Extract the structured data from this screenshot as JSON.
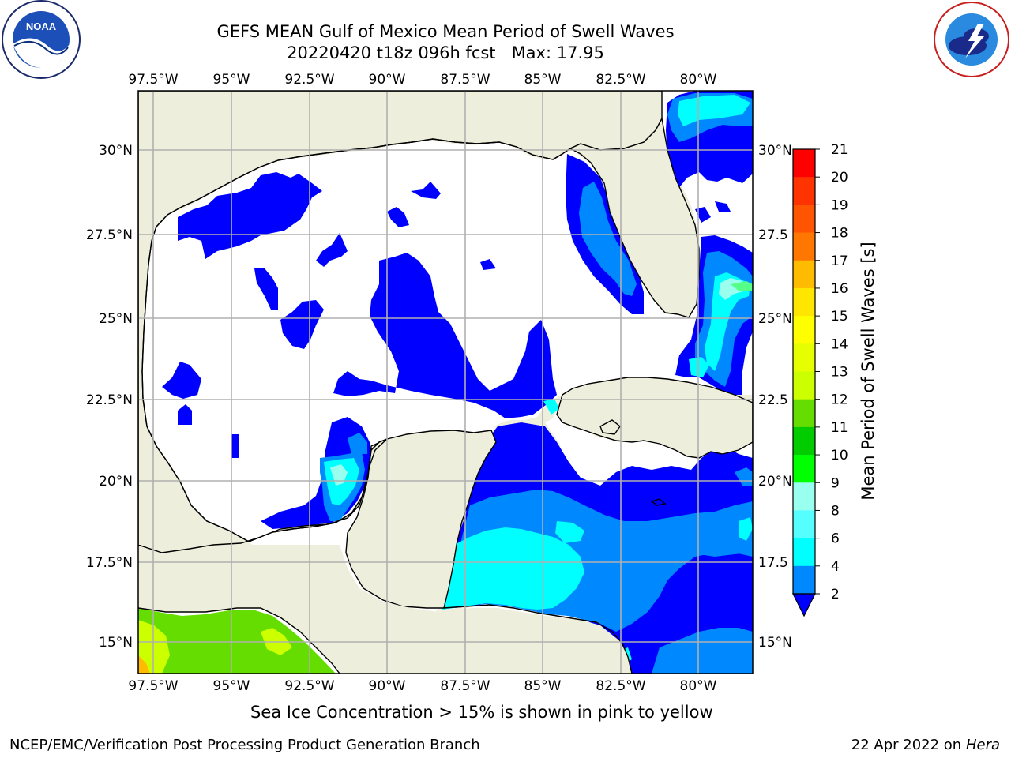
{
  "title": {
    "line1": "GEFS MEAN Gulf of Mexico Mean Period of Swell Waves",
    "line2": "20220420 t18z 096h fcst   Max: 17.95"
  },
  "logos": {
    "noara_left": "noaa-logo",
    "nws_right": "national-weather-service-logo"
  },
  "axes": {
    "lon_labels": [
      "97.5°W",
      "95°W",
      "92.5°W",
      "90°W",
      "87.5°W",
      "85°W",
      "82.5°W",
      "80°W"
    ],
    "lat_labels_left": [
      "30°N",
      "27.5°N",
      "25°N",
      "22.5°N",
      "20°N",
      "17.5°N",
      "15°N"
    ],
    "lat_labels_right": [
      "30°N",
      "27.5",
      "25°N",
      "22.5",
      "20°N",
      "17.5",
      "15°N"
    ]
  },
  "colorbar": {
    "label": "Mean Period of Swell Waves [s]",
    "ticks": [
      "21",
      "20",
      "19",
      "18",
      "17",
      "16",
      "15",
      "14",
      "13",
      "12",
      "11",
      "10",
      "9",
      "8",
      "6",
      "4",
      "2"
    ],
    "colors": [
      "#ff0000",
      "#ff3300",
      "#ff5500",
      "#ff7700",
      "#ff9900",
      "#ffbb00",
      "#ffe600",
      "#ffff00",
      "#e6ff00",
      "#ccff00",
      "#66dd00",
      "#00cc00",
      "#00ff00",
      "#55ff88",
      "#99ffee",
      "#55ffff",
      "#00ffff",
      "#0088ff",
      "#0000ff"
    ]
  },
  "colors": {
    "land": "#eeeedc",
    "ocean_low": "#0000ff",
    "ocean_mid": "#0088ff",
    "ocean_high": "#00ffff",
    "ocean_veryhigh": "#99ffee",
    "pacific_green": "#66dd00",
    "pacific_yellowgreen": "#ccff00",
    "grid": "#b0b0b0"
  },
  "footer": {
    "note": "Sea Ice Concentration > 15% is shown in pink to yellow",
    "credit": "NCEP/EMC/Verification Post Processing Product Generation Branch",
    "date": "22 Apr 2022 on ",
    "machine": "Hera"
  }
}
